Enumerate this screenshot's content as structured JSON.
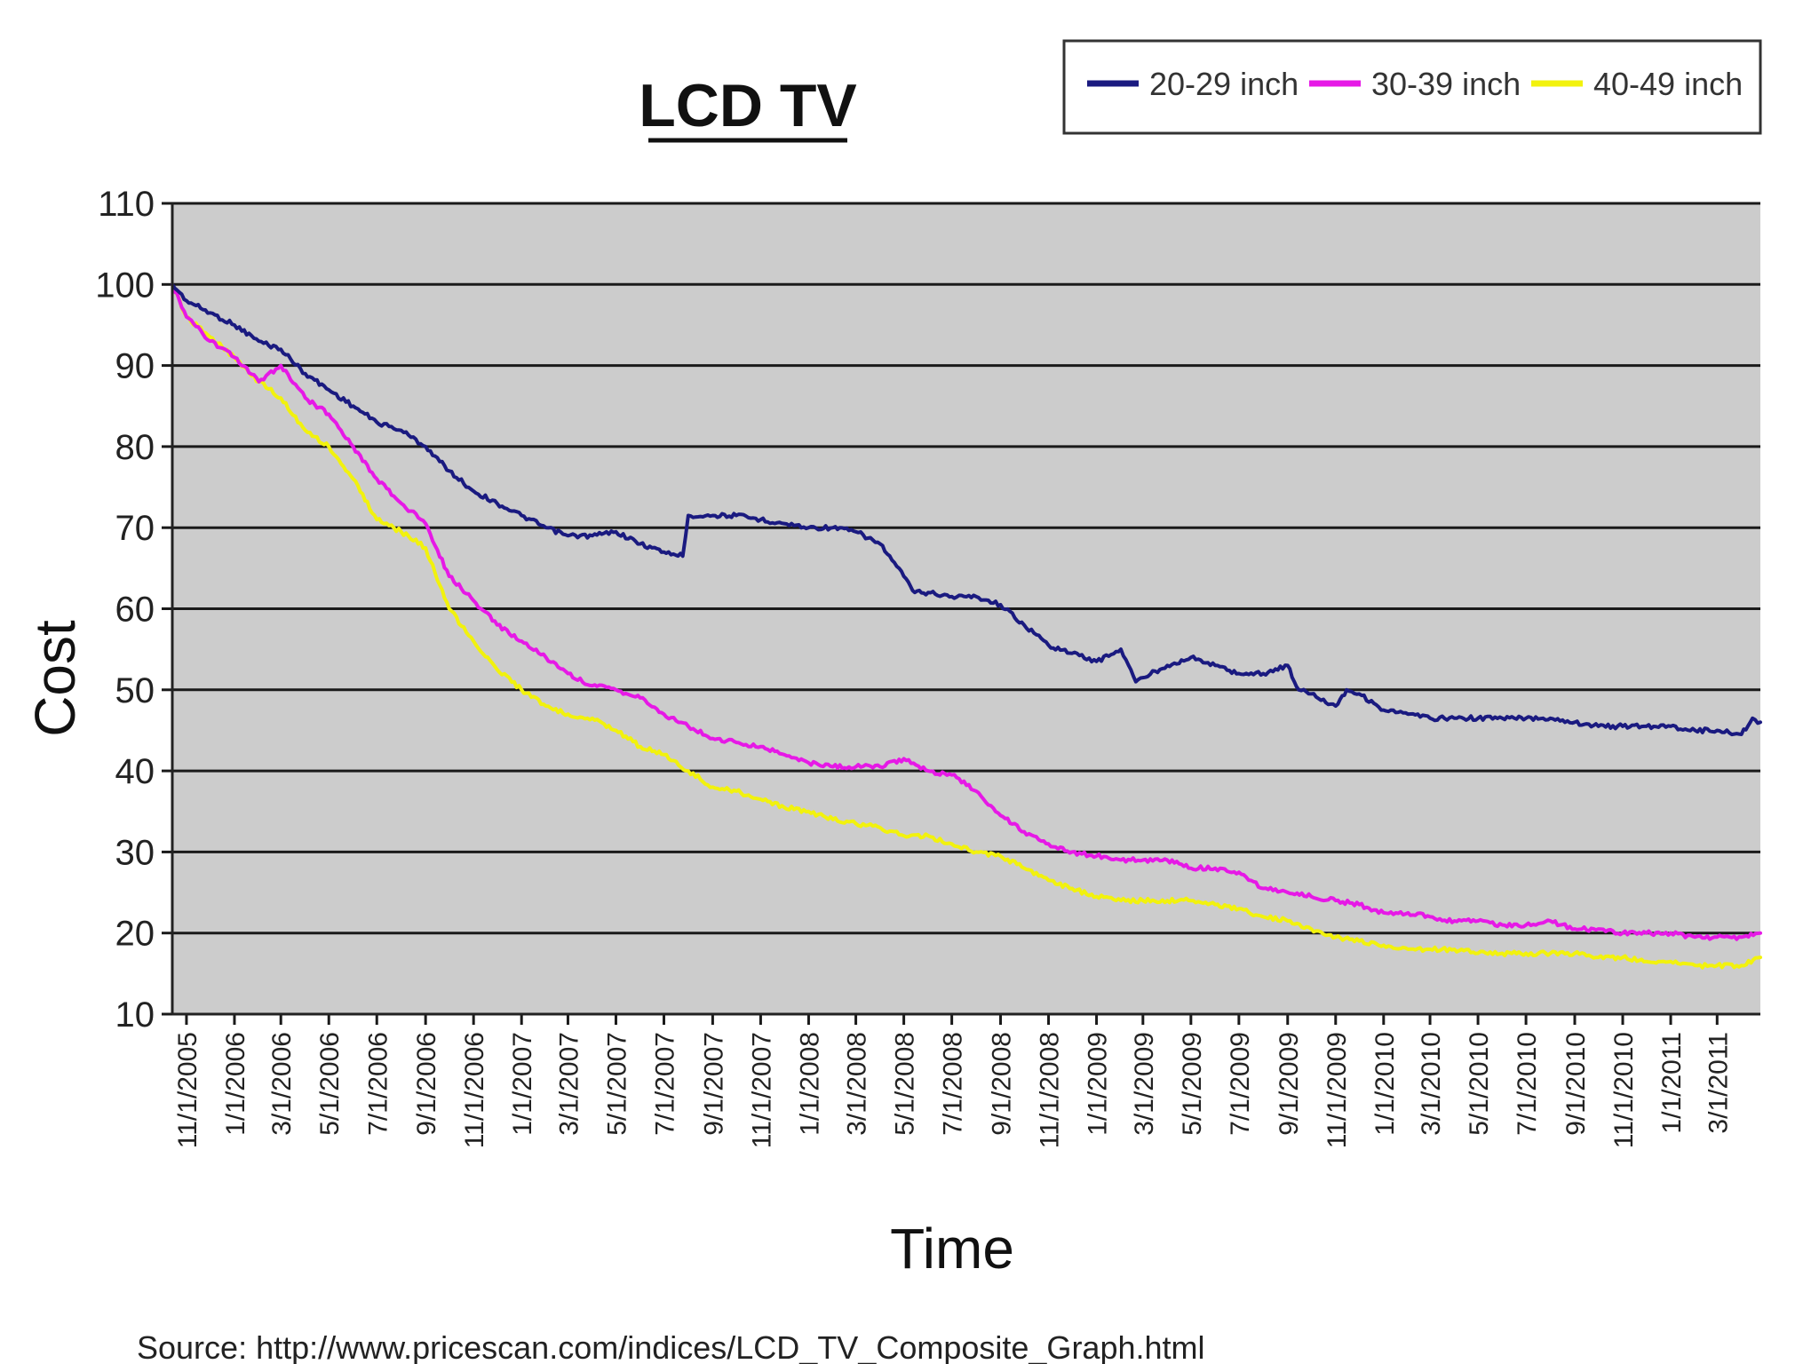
{
  "chart_data": {
    "type": "line",
    "title": "LCD TV",
    "xlabel": "Time",
    "ylabel": "Cost",
    "ylim": [
      10,
      110
    ],
    "yticks": [
      10,
      20,
      30,
      40,
      50,
      60,
      70,
      80,
      90,
      100,
      110
    ],
    "xlim": [
      "2005-10-14",
      "2011-04-25"
    ],
    "xtick_labels": [
      "11/1/2005",
      "1/1/2006",
      "3/1/2006",
      "5/1/2006",
      "7/1/2006",
      "9/1/2006",
      "11/1/2006",
      "1/1/2007",
      "3/1/2007",
      "5/1/2007",
      "7/1/2007",
      "9/1/2007",
      "11/1/2007",
      "1/1/2008",
      "3/1/2008",
      "5/1/2008",
      "7/1/2008",
      "9/1/2008",
      "11/1/2008",
      "1/1/2009",
      "3/1/2009",
      "5/1/2009",
      "7/1/2009",
      "9/1/2009",
      "11/1/2009",
      "1/1/2010",
      "3/1/2010",
      "5/1/2010",
      "7/1/2010",
      "9/1/2010",
      "11/1/2010",
      "1/1/2011",
      "3/1/2011"
    ],
    "grid": true,
    "legend_position": "top-right",
    "plot_background": "#cccccc",
    "series": [
      {
        "name": "20-29 inch",
        "color": "#1a1a80",
        "points": [
          [
            "2005-10-14",
            100
          ],
          [
            "2005-11-01",
            98
          ],
          [
            "2005-12-01",
            96.5
          ],
          [
            "2006-01-01",
            95
          ],
          [
            "2006-02-01",
            93
          ],
          [
            "2006-03-01",
            92
          ],
          [
            "2006-04-01",
            89
          ],
          [
            "2006-05-01",
            87
          ],
          [
            "2006-06-01",
            85
          ],
          [
            "2006-07-01",
            83
          ],
          [
            "2006-08-01",
            82
          ],
          [
            "2006-09-01",
            80
          ],
          [
            "2006-10-01",
            77
          ],
          [
            "2006-11-01",
            74.5
          ],
          [
            "2006-12-01",
            73
          ],
          [
            "2007-01-01",
            71.5
          ],
          [
            "2007-02-01",
            70
          ],
          [
            "2007-03-01",
            69
          ],
          [
            "2007-04-01",
            69
          ],
          [
            "2007-05-01",
            69.5
          ],
          [
            "2007-06-01",
            68
          ],
          [
            "2007-07-01",
            67
          ],
          [
            "2007-07-25",
            66.5
          ],
          [
            "2007-08-01",
            71.5
          ],
          [
            "2007-09-01",
            71.5
          ],
          [
            "2007-10-01",
            71.5
          ],
          [
            "2007-11-01",
            71
          ],
          [
            "2007-12-01",
            70.5
          ],
          [
            "2008-01-01",
            70
          ],
          [
            "2008-02-01",
            70
          ],
          [
            "2008-03-01",
            69.5
          ],
          [
            "2008-04-01",
            68
          ],
          [
            "2008-05-01",
            64
          ],
          [
            "2008-05-15",
            62
          ],
          [
            "2008-06-01",
            62
          ],
          [
            "2008-07-01",
            61.5
          ],
          [
            "2008-08-01",
            61.5
          ],
          [
            "2008-09-01",
            60.5
          ],
          [
            "2008-10-01",
            58
          ],
          [
            "2008-11-01",
            55.5
          ],
          [
            "2008-12-01",
            54.5
          ],
          [
            "2009-01-01",
            53.5
          ],
          [
            "2009-02-01",
            55
          ],
          [
            "2009-02-20",
            51
          ],
          [
            "2009-03-01",
            51.5
          ],
          [
            "2009-04-01",
            53
          ],
          [
            "2009-05-01",
            54
          ],
          [
            "2009-06-01",
            53
          ],
          [
            "2009-07-01",
            52
          ],
          [
            "2009-08-01",
            52
          ],
          [
            "2009-09-01",
            53
          ],
          [
            "2009-09-15",
            50
          ],
          [
            "2009-10-01",
            49.5
          ],
          [
            "2009-11-01",
            48
          ],
          [
            "2009-11-15",
            50
          ],
          [
            "2009-12-01",
            49.5
          ],
          [
            "2010-01-01",
            47.5
          ],
          [
            "2010-02-01",
            47
          ],
          [
            "2010-03-01",
            46.5
          ],
          [
            "2010-04-01",
            46.5
          ],
          [
            "2010-05-01",
            46.5
          ],
          [
            "2010-06-01",
            46.5
          ],
          [
            "2010-07-01",
            46.5
          ],
          [
            "2010-08-01",
            46.5
          ],
          [
            "2010-09-01",
            46
          ],
          [
            "2010-10-01",
            45.5
          ],
          [
            "2010-11-01",
            45.5
          ],
          [
            "2010-12-01",
            45.5
          ],
          [
            "2011-01-01",
            45.5
          ],
          [
            "2011-02-01",
            45
          ],
          [
            "2011-03-01",
            45
          ],
          [
            "2011-04-01",
            44.5
          ],
          [
            "2011-04-15",
            46.5
          ],
          [
            "2011-04-25",
            46
          ]
        ]
      },
      {
        "name": "30-39 inch",
        "color": "#e619e6",
        "points": [
          [
            "2005-10-14",
            100
          ],
          [
            "2005-11-01",
            96
          ],
          [
            "2005-12-01",
            93
          ],
          [
            "2006-01-01",
            91
          ],
          [
            "2006-02-01",
            88
          ],
          [
            "2006-03-01",
            90
          ],
          [
            "2006-04-01",
            86
          ],
          [
            "2006-05-01",
            84
          ],
          [
            "2006-06-01",
            80
          ],
          [
            "2006-07-01",
            76
          ],
          [
            "2006-08-01",
            73
          ],
          [
            "2006-09-01",
            70.5
          ],
          [
            "2006-10-01",
            64
          ],
          [
            "2006-11-01",
            61
          ],
          [
            "2006-12-01",
            58
          ],
          [
            "2007-01-01",
            56
          ],
          [
            "2007-02-01",
            54
          ],
          [
            "2007-03-01",
            52
          ],
          [
            "2007-04-01",
            50.5
          ],
          [
            "2007-05-01",
            50
          ],
          [
            "2007-06-01",
            49
          ],
          [
            "2007-07-01",
            47
          ],
          [
            "2007-08-01",
            45.5
          ],
          [
            "2007-09-01",
            44
          ],
          [
            "2007-10-01",
            43.5
          ],
          [
            "2007-11-01",
            43
          ],
          [
            "2007-12-01",
            42
          ],
          [
            "2008-01-01",
            41
          ],
          [
            "2008-02-01",
            40.5
          ],
          [
            "2008-03-01",
            40.5
          ],
          [
            "2008-04-01",
            40.5
          ],
          [
            "2008-05-01",
            41.5
          ],
          [
            "2008-06-01",
            40
          ],
          [
            "2008-07-01",
            39.5
          ],
          [
            "2008-08-01",
            37.5
          ],
          [
            "2008-09-01",
            34.5
          ],
          [
            "2008-10-01",
            32.5
          ],
          [
            "2008-11-01",
            31
          ],
          [
            "2008-12-01",
            30
          ],
          [
            "2009-01-01",
            29.5
          ],
          [
            "2009-02-01",
            29
          ],
          [
            "2009-03-01",
            29
          ],
          [
            "2009-04-01",
            29
          ],
          [
            "2009-05-01",
            28
          ],
          [
            "2009-06-01",
            28
          ],
          [
            "2009-07-01",
            27.5
          ],
          [
            "2009-08-01",
            25.5
          ],
          [
            "2009-09-01",
            25
          ],
          [
            "2009-10-01",
            24.5
          ],
          [
            "2009-11-01",
            24
          ],
          [
            "2009-12-01",
            23.5
          ],
          [
            "2010-01-01",
            22.5
          ],
          [
            "2010-02-01",
            22.5
          ],
          [
            "2010-03-01",
            22
          ],
          [
            "2010-04-01",
            21.5
          ],
          [
            "2010-05-01",
            21.5
          ],
          [
            "2010-06-01",
            21
          ],
          [
            "2010-07-01",
            21
          ],
          [
            "2010-08-01",
            21.5
          ],
          [
            "2010-09-01",
            20.5
          ],
          [
            "2010-10-01",
            20.5
          ],
          [
            "2010-11-01",
            20
          ],
          [
            "2010-12-01",
            20
          ],
          [
            "2011-01-01",
            20
          ],
          [
            "2011-02-01",
            19.5
          ],
          [
            "2011-03-01",
            19.5
          ],
          [
            "2011-04-01",
            19.5
          ],
          [
            "2011-04-25",
            20
          ]
        ]
      },
      {
        "name": "40-49 inch",
        "color": "#f2f20d",
        "points": [
          [
            "2005-10-14",
            100
          ],
          [
            "2005-11-01",
            96
          ],
          [
            "2005-12-01",
            93.5
          ],
          [
            "2006-01-01",
            91
          ],
          [
            "2006-02-01",
            88
          ],
          [
            "2006-03-01",
            86
          ],
          [
            "2006-04-01",
            82
          ],
          [
            "2006-05-01",
            80
          ],
          [
            "2006-06-01",
            76
          ],
          [
            "2006-07-01",
            71
          ],
          [
            "2006-08-01",
            69.5
          ],
          [
            "2006-09-01",
            67.5
          ],
          [
            "2006-10-01",
            60
          ],
          [
            "2006-11-01",
            56
          ],
          [
            "2006-12-01",
            52.5
          ],
          [
            "2007-01-01",
            50
          ],
          [
            "2007-02-01",
            48
          ],
          [
            "2007-03-01",
            47
          ],
          [
            "2007-04-01",
            46.5
          ],
          [
            "2007-05-01",
            45
          ],
          [
            "2007-06-01",
            43
          ],
          [
            "2007-07-01",
            42
          ],
          [
            "2007-08-01",
            40
          ],
          [
            "2007-09-01",
            38
          ],
          [
            "2007-10-01",
            37.5
          ],
          [
            "2007-11-01",
            36.5
          ],
          [
            "2007-12-01",
            35.5
          ],
          [
            "2008-01-01",
            35
          ],
          [
            "2008-02-01",
            34
          ],
          [
            "2008-03-01",
            33.5
          ],
          [
            "2008-04-01",
            33
          ],
          [
            "2008-05-01",
            32
          ],
          [
            "2008-06-01",
            32
          ],
          [
            "2008-07-01",
            31
          ],
          [
            "2008-08-01",
            30
          ],
          [
            "2008-09-01",
            29.5
          ],
          [
            "2008-10-01",
            28
          ],
          [
            "2008-11-01",
            26.5
          ],
          [
            "2008-12-01",
            25.5
          ],
          [
            "2009-01-01",
            24.5
          ],
          [
            "2009-02-01",
            24
          ],
          [
            "2009-03-01",
            24
          ],
          [
            "2009-04-01",
            24
          ],
          [
            "2009-05-01",
            24
          ],
          [
            "2009-06-01",
            23.5
          ],
          [
            "2009-07-01",
            23
          ],
          [
            "2009-08-01",
            22
          ],
          [
            "2009-09-01",
            21.5
          ],
          [
            "2009-10-01",
            20.5
          ],
          [
            "2009-11-01",
            19.5
          ],
          [
            "2009-12-01",
            19
          ],
          [
            "2010-01-01",
            18.5
          ],
          [
            "2010-02-01",
            18
          ],
          [
            "2010-03-01",
            18
          ],
          [
            "2010-04-01",
            18
          ],
          [
            "2010-05-01",
            17.5
          ],
          [
            "2010-06-01",
            17.5
          ],
          [
            "2010-07-01",
            17.5
          ],
          [
            "2010-08-01",
            17.5
          ],
          [
            "2010-09-01",
            17.5
          ],
          [
            "2010-10-01",
            17
          ],
          [
            "2010-11-01",
            17
          ],
          [
            "2010-12-01",
            16.5
          ],
          [
            "2011-01-01",
            16.5
          ],
          [
            "2011-02-01",
            16
          ],
          [
            "2011-03-01",
            16
          ],
          [
            "2011-04-01",
            16
          ],
          [
            "2011-04-25",
            17
          ]
        ]
      }
    ]
  },
  "source_text": "Source: http://www.pricescan.com/indices/LCD_TV_Composite_Graph.html"
}
